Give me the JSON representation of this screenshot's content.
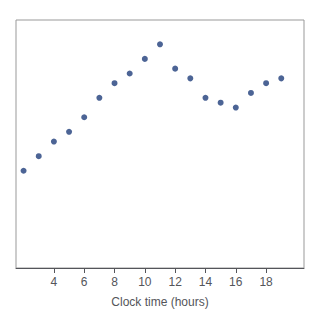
{
  "chart_data": {
    "type": "scatter",
    "xlabel": "Clock time (hours)",
    "x": [
      2,
      3,
      4,
      5,
      6,
      7,
      8,
      9,
      10,
      11,
      12,
      13,
      14,
      15,
      16,
      17,
      18,
      19
    ],
    "values": [
      36.2,
      36.35,
      36.5,
      36.6,
      36.75,
      36.95,
      37.1,
      37.2,
      37.35,
      37.5,
      37.25,
      37.15,
      36.95,
      36.9,
      36.85,
      37.0,
      37.1,
      37.15
    ],
    "color": "#1f3d7a",
    "xlim": [
      1.5,
      20.5
    ],
    "xticks": [
      4,
      6,
      8,
      10,
      12,
      14,
      16,
      18
    ],
    "ylim": [
      35.2,
      37.75
    ],
    "grid": false,
    "tick_labels": "x"
  }
}
